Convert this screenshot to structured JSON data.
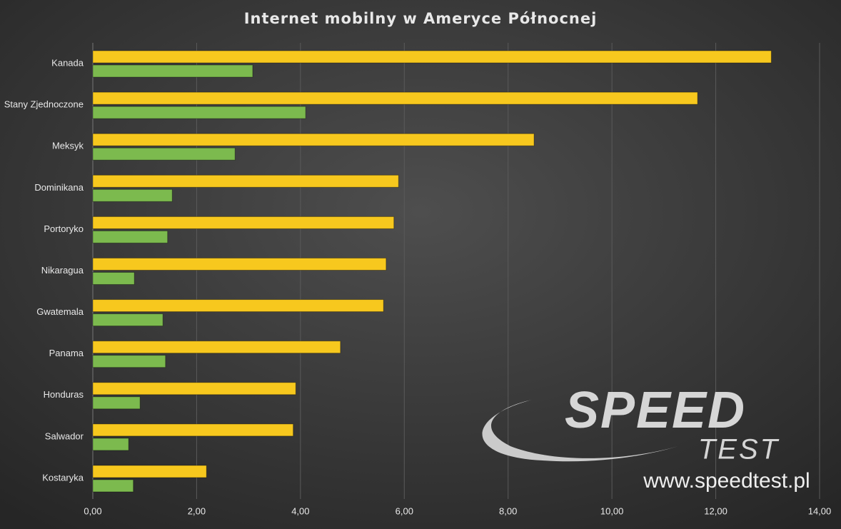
{
  "chart_data": {
    "type": "bar",
    "orientation": "horizontal",
    "title": "Internet mobilny w Ameryce Północnej",
    "categories": [
      "Kanada",
      "Stany Zjednoczone",
      "Meksyk",
      "Dominikana",
      "Portoryko",
      "Nikaragua",
      "Gwatemala",
      "Panama",
      "Honduras",
      "Salwador",
      "Kostaryka"
    ],
    "series": [
      {
        "color": "#f7c81e",
        "values": [
          13.07,
          11.65,
          8.5,
          5.89,
          5.8,
          5.65,
          5.6,
          4.77,
          3.91,
          3.86,
          2.19
        ]
      },
      {
        "color": "#7cba4e",
        "values": [
          3.08,
          4.1,
          2.74,
          1.53,
          1.44,
          0.8,
          1.35,
          1.4,
          0.91,
          0.69,
          0.78
        ]
      }
    ],
    "xlim": [
      0,
      14
    ],
    "xticks": [
      {
        "value": 0,
        "label": "0,00"
      },
      {
        "value": 2,
        "label": "2,00"
      },
      {
        "value": 4,
        "label": "4,00"
      },
      {
        "value": 6,
        "label": "6,00"
      },
      {
        "value": 8,
        "label": "8,00"
      },
      {
        "value": 10,
        "label": "10,00"
      },
      {
        "value": 12,
        "label": "12,00"
      },
      {
        "value": 14,
        "label": "14,00"
      }
    ],
    "grid": true,
    "watermark": {
      "logo": "SPEED",
      "sub": "TEST",
      "url": "www.speedtest.pl"
    }
  }
}
